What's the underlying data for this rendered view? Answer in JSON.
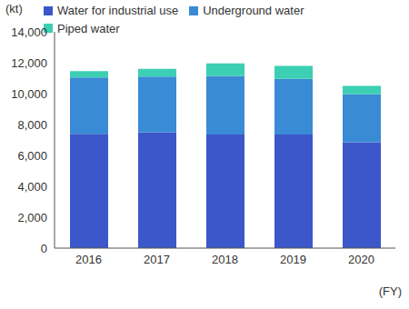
{
  "chart_data": {
    "type": "bar",
    "stacked": true,
    "y_label": "(kt)",
    "x_label": "(FY)",
    "categories": [
      "2016",
      "2017",
      "2018",
      "2019",
      "2020"
    ],
    "series": [
      {
        "name": "Water for industrial use",
        "color": "#3b57c9",
        "values": [
          7400,
          7500,
          7350,
          7350,
          6850
        ]
      },
      {
        "name": "Underground water",
        "color": "#3a8bd5",
        "values": [
          3650,
          3600,
          3800,
          3600,
          3100
        ]
      },
      {
        "name": "Piped water",
        "color": "#3ccfb3",
        "values": [
          400,
          500,
          800,
          850,
          550
        ]
      }
    ],
    "ylim": [
      0,
      14000
    ],
    "yticks": [
      0,
      {
        "value": 2000,
        "label": "2,000"
      },
      {
        "value": 4000,
        "label": "4,000"
      },
      {
        "value": 6000,
        "label": "6,000"
      },
      {
        "value": 8000,
        "label": "8,000"
      },
      {
        "value": 10000,
        "label": "10,000"
      },
      {
        "value": 12000,
        "label": "12,000"
      },
      {
        "value": 14000,
        "label": "14,000"
      }
    ],
    "grid": false,
    "legend": "top"
  }
}
